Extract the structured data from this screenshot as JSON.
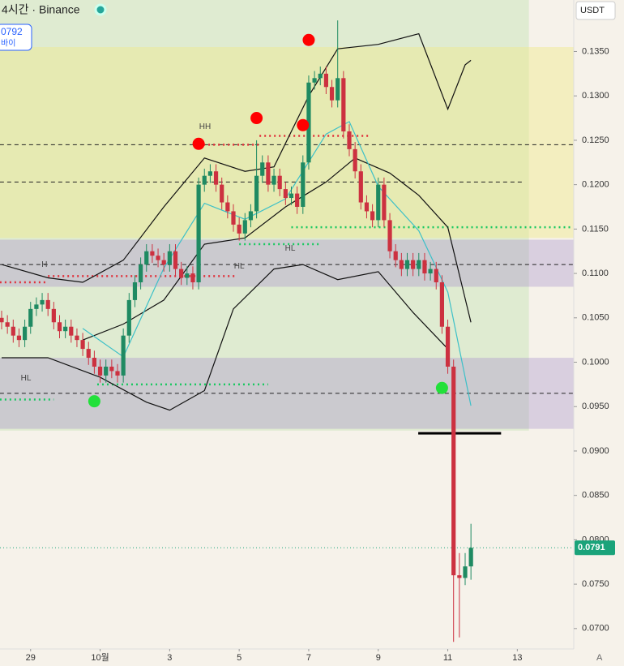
{
  "chart_data": {
    "type": "candlestick",
    "title": "4시간 · Binance",
    "badge": "0792",
    "badge_sub": "바이",
    "currency": "USDT",
    "corner": "A",
    "up_color": "#1f8a62",
    "down_color": "#cc3140",
    "open": [
      0.105,
      0.1045,
      0.104,
      0.103,
      0.1025,
      0.104,
      0.106,
      0.1065,
      0.107,
      0.106,
      0.1045,
      0.1035,
      0.104,
      0.103,
      0.1025,
      0.1015,
      0.1005,
      0.0995,
      0.0985,
      0.0995,
      0.099,
      0.0985,
      0.103,
      0.107,
      0.109,
      0.111,
      0.1125,
      0.112,
      0.1115,
      0.111,
      0.1125,
      0.1105,
      0.1095,
      0.11,
      0.109,
      0.12,
      0.121,
      0.1215,
      0.12,
      0.118,
      0.117,
      0.1155,
      0.1145,
      0.116,
      0.117,
      0.121,
      0.1225,
      0.12,
      0.121,
      0.1195,
      0.1185,
      0.119,
      0.1175,
      0.1225,
      0.1315,
      0.132,
      0.1325,
      0.131,
      0.1295,
      0.132,
      0.126,
      0.124,
      0.1215,
      0.118,
      0.117,
      0.116,
      0.12,
      0.116,
      0.1125,
      0.1115,
      0.1105,
      0.1115,
      0.1105,
      0.1115,
      0.11,
      0.1105,
      0.109,
      0.104,
      0.0995,
      0.076,
      0.0757,
      0.077
    ],
    "high": [
      0.1058,
      0.1053,
      0.1048,
      0.1038,
      0.1048,
      0.1068,
      0.1073,
      0.1078,
      0.1078,
      0.1068,
      0.1053,
      0.1048,
      0.1048,
      0.1038,
      0.1033,
      0.1023,
      0.1013,
      0.1003,
      0.1003,
      0.1003,
      0.0998,
      0.1038,
      0.1078,
      0.1098,
      0.1118,
      0.1133,
      0.1133,
      0.1128,
      0.1123,
      0.1133,
      0.1133,
      0.1113,
      0.1108,
      0.1108,
      0.1208,
      0.1218,
      0.1223,
      0.1223,
      0.1208,
      0.1188,
      0.1178,
      0.1163,
      0.1168,
      0.1178,
      0.125,
      0.1233,
      0.1233,
      0.1218,
      0.1218,
      0.1203,
      0.1198,
      0.1198,
      0.1233,
      0.1323,
      0.1328,
      0.1333,
      0.1333,
      0.1318,
      0.1385,
      0.1328,
      0.1268,
      0.1248,
      0.1223,
      0.1188,
      0.1178,
      0.1208,
      0.1208,
      0.1168,
      0.1133,
      0.1123,
      0.1123,
      0.1123,
      0.1123,
      0.1123,
      0.1113,
      0.1113,
      0.1098,
      0.1048,
      0.1003,
      0.0785,
      0.0785,
      0.0818
    ],
    "low": [
      0.1037,
      0.1032,
      0.1022,
      0.1017,
      0.1017,
      0.1032,
      0.1052,
      0.1057,
      0.1052,
      0.1037,
      0.1027,
      0.1027,
      0.1022,
      0.1017,
      0.1007,
      0.0997,
      0.0987,
      0.0977,
      0.0977,
      0.0982,
      0.0977,
      0.0977,
      0.1022,
      0.1062,
      0.1082,
      0.1102,
      0.1112,
      0.1107,
      0.1102,
      0.1102,
      0.1097,
      0.1087,
      0.1087,
      0.1082,
      0.1082,
      0.1192,
      0.1202,
      0.1192,
      0.1172,
      0.1162,
      0.1147,
      0.1137,
      0.1137,
      0.1152,
      0.1162,
      0.1202,
      0.1192,
      0.1192,
      0.1187,
      0.1177,
      0.1177,
      0.1167,
      0.1167,
      0.1217,
      0.1307,
      0.1312,
      0.1302,
      0.1287,
      0.1287,
      0.1252,
      0.1232,
      0.1207,
      0.1172,
      0.1162,
      0.1152,
      0.1152,
      0.1152,
      0.1117,
      0.1107,
      0.1097,
      0.1097,
      0.1097,
      0.1097,
      0.1092,
      0.1092,
      0.1082,
      0.1032,
      0.0987,
      0.0685,
      0.069,
      0.0749,
      0.0755
    ],
    "close": [
      0.1045,
      0.104,
      0.103,
      0.1025,
      0.104,
      0.106,
      0.1065,
      0.107,
      0.106,
      0.1045,
      0.1035,
      0.104,
      0.103,
      0.1025,
      0.1015,
      0.1005,
      0.0995,
      0.0985,
      0.0995,
      0.099,
      0.0985,
      0.103,
      0.107,
      0.109,
      0.111,
      0.1125,
      0.112,
      0.1115,
      0.111,
      0.1125,
      0.1105,
      0.1095,
      0.11,
      0.109,
      0.12,
      0.121,
      0.1215,
      0.12,
      0.118,
      0.117,
      0.1155,
      0.1145,
      0.116,
      0.117,
      0.121,
      0.1225,
      0.12,
      0.121,
      0.1195,
      0.1185,
      0.119,
      0.1175,
      0.1225,
      0.1315,
      0.132,
      0.1325,
      0.131,
      0.1295,
      0.132,
      0.126,
      0.124,
      0.1215,
      0.118,
      0.117,
      0.116,
      0.12,
      0.116,
      0.1125,
      0.1115,
      0.1105,
      0.1115,
      0.1105,
      0.1115,
      0.11,
      0.1105,
      0.109,
      0.104,
      0.0995,
      0.076,
      0.0757,
      0.077,
      0.0791
    ],
    "last_price": 0.0791,
    "last_price_color": "#1aa37a",
    "ylim": [
      0.0677,
      0.1408
    ],
    "yticks": [
      {
        "value": 0.135,
        "label": "0.1350"
      },
      {
        "value": 0.13,
        "label": "0.1300"
      },
      {
        "value": 0.125,
        "label": "0.1250"
      },
      {
        "value": 0.12,
        "label": "0.1200"
      },
      {
        "value": 0.115,
        "label": "0.1150"
      },
      {
        "value": 0.11,
        "label": "0.1100"
      },
      {
        "value": 0.105,
        "label": "0.1050"
      },
      {
        "value": 0.1,
        "label": "0.1000"
      },
      {
        "value": 0.095,
        "label": "0.0950"
      },
      {
        "value": 0.09,
        "label": "0.0900"
      },
      {
        "value": 0.085,
        "label": "0.0850"
      },
      {
        "value": 0.08,
        "label": "0.0800"
      },
      {
        "value": 0.075,
        "label": "0.0750"
      },
      {
        "value": 0.07,
        "label": "0.0700"
      }
    ],
    "xticks": [
      {
        "value": 5,
        "label": "29"
      },
      {
        "value": 17,
        "label": "10월"
      },
      {
        "value": 29,
        "label": "3"
      },
      {
        "value": 41,
        "label": "5"
      },
      {
        "value": 53,
        "label": "7"
      },
      {
        "value": 65,
        "label": "9"
      },
      {
        "value": 77,
        "label": "11"
      },
      {
        "value": 89,
        "label": "13"
      }
    ],
    "zones": [
      {
        "from": 0.0923,
        "to": 0.1408,
        "x": [
          -0.3,
          91
        ],
        "color": "rgba(196,226,180,0.45)"
      },
      {
        "from": 0.114,
        "to": 0.1355,
        "x": [
          -0.3,
          98.8
        ],
        "color": "rgba(240,232,140,0.45)"
      },
      {
        "from": 0.1085,
        "to": 0.1138,
        "x": [
          -0.3,
          98.8
        ],
        "color": "rgba(170,150,205,0.38)"
      },
      {
        "from": 0.0925,
        "to": 0.1005,
        "x": [
          -0.3,
          98.8
        ],
        "color": "rgba(170,150,205,0.38)"
      }
    ],
    "levels": [
      {
        "value": 0.1245,
        "x": [
          -0.3,
          98.8
        ],
        "color": "#222",
        "style": "dashed"
      },
      {
        "value": 0.1203,
        "x": [
          -0.3,
          90
        ],
        "color": "#222",
        "style": "dashed"
      },
      {
        "value": 0.111,
        "x": [
          -0.3,
          98.8
        ],
        "color": "#222",
        "style": "dashed"
      },
      {
        "value": 0.0965,
        "x": [
          -0.3,
          98.8
        ],
        "color": "#222",
        "style": "dashed"
      },
      {
        "value": 0.1152,
        "x": [
          50,
          98.8
        ],
        "color": "#18c860",
        "style": "dotted"
      },
      {
        "value": 0.1133,
        "x": [
          41,
          55
        ],
        "color": "#18c860",
        "style": "dotted"
      },
      {
        "value": 0.0975,
        "x": [
          16.5,
          46
        ],
        "color": "#18c860",
        "style": "dotted"
      },
      {
        "value": 0.0958,
        "x": [
          -0.3,
          9
        ],
        "color": "#18c860",
        "style": "dotted"
      },
      {
        "value": 0.1255,
        "x": [
          44.5,
          63.5
        ],
        "color": "#e0303a",
        "style": "dotted"
      },
      {
        "value": 0.1245,
        "x": [
          34,
          44.5
        ],
        "color": "#e0303a",
        "style": "dotted"
      },
      {
        "value": 0.1097,
        "x": [
          8,
          40.5
        ],
        "color": "#e0303a",
        "style": "dotted"
      },
      {
        "value": 0.109,
        "x": [
          -0.3,
          8
        ],
        "color": "#e0303a",
        "style": "dotted"
      },
      {
        "value": 0.092,
        "x": [
          71.9,
          86.2
        ],
        "color": "#000",
        "style": "solid"
      }
    ],
    "overlays": [
      {
        "color": "#111",
        "x": [
          0,
          8,
          14,
          21,
          28,
          35,
          42,
          47,
          53,
          58,
          65,
          72,
          77,
          80,
          81
        ],
        "values": [
          0.111,
          0.1095,
          0.109,
          0.1115,
          0.1175,
          0.123,
          0.1215,
          0.122,
          0.13,
          0.1353,
          0.1358,
          0.137,
          0.1285,
          0.1335,
          0.134
        ]
      },
      {
        "color": "#111",
        "x": [
          0,
          8,
          17,
          25,
          29,
          35,
          40,
          47,
          52,
          58,
          65,
          71,
          77
        ],
        "values": [
          0.1005,
          0.1005,
          0.0983,
          0.0955,
          0.0946,
          0.0968,
          0.106,
          0.1105,
          0.111,
          0.1093,
          0.1102,
          0.1056,
          0.1015
        ]
      },
      {
        "color": "#111",
        "x": [
          14,
          21,
          28,
          35,
          42,
          49,
          56,
          61,
          67,
          72,
          77,
          81
        ],
        "values": [
          0.1025,
          0.1043,
          0.107,
          0.1133,
          0.114,
          0.1175,
          0.1203,
          0.123,
          0.1213,
          0.1188,
          0.1152,
          0.1045
        ]
      },
      {
        "color": "#3cc0c8",
        "x": [
          14,
          21,
          28,
          35,
          42,
          49,
          56,
          60,
          65,
          72,
          77,
          81
        ],
        "values": [
          0.1038,
          0.1006,
          0.1106,
          0.1179,
          0.1161,
          0.1184,
          0.1257,
          0.1271,
          0.1198,
          0.1148,
          0.1079,
          0.0951
        ]
      },
      {
        "color": "#d03040",
        "x": [
          0,
          2,
          5,
          7.4,
          10.2,
          12.3,
          15,
          17.9,
          20.7,
          22.1,
          23.5,
          24.9,
          27.7,
          29.1,
          31.2,
          33.3,
          35.4,
          37.5,
          39.6,
          41.7,
          45.2,
          47.3,
          49.4,
          51.5,
          53.6,
          55,
          58.5,
          61.3,
          62.7,
          65.5,
          66.9,
          69,
          71.1,
          72.5,
          75.3,
          76,
          78,
          79.4,
          80.1,
          81
        ]
      },
      {
        "color": "#d03040",
        "x": [],
        "values": []
      }
    ],
    "markers": [
      {
        "x": 34,
        "value": 0.1246,
        "color": "#ff0000"
      },
      {
        "x": 44,
        "value": 0.1275,
        "color": "#ff0000"
      },
      {
        "x": 52,
        "value": 0.1267,
        "color": "#ff0000"
      },
      {
        "x": 53,
        "value": 0.1363,
        "color": "#ff0000"
      },
      {
        "x": 16,
        "value": 0.0956,
        "color": "#22e03a"
      },
      {
        "x": 76,
        "value": 0.0971,
        "color": "#22e03a"
      }
    ],
    "annotations": [
      {
        "text": "HH",
        "x": 35.1,
        "value": 0.1265
      },
      {
        "text": "HL",
        "x": 41,
        "value": 0.1108
      },
      {
        "text": "HL",
        "x": 49.8,
        "value": 0.1128
      },
      {
        "text": "H",
        "x": 7.4,
        "value": 0.111
      },
      {
        "text": "HL",
        "x": 4.2,
        "value": 0.0982
      }
    ]
  }
}
